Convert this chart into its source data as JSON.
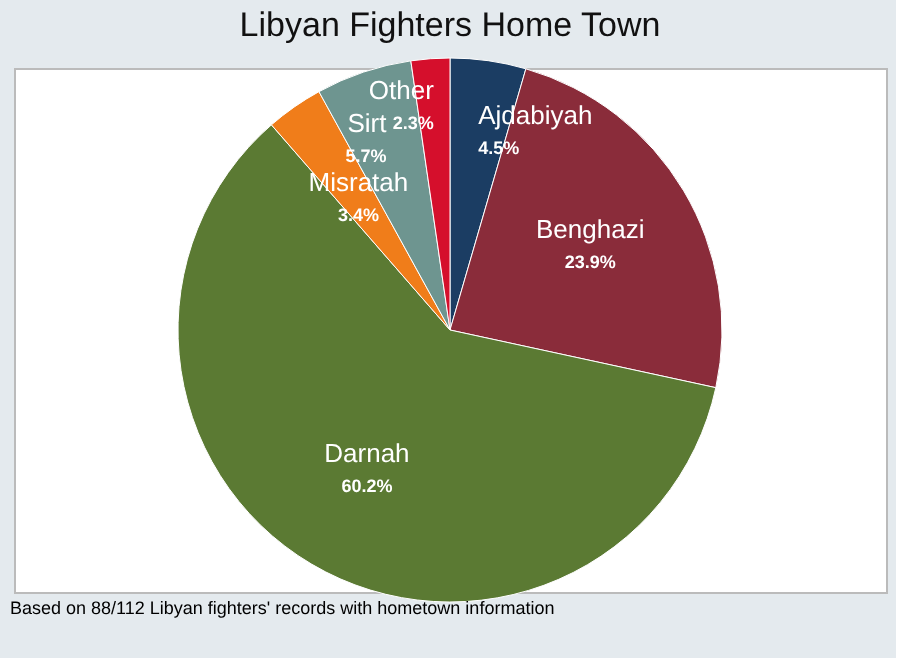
{
  "chart_data": {
    "type": "pie",
    "title": "Libyan Fighters Home Town",
    "categories": [
      "Ajdabiyah",
      "Benghazi",
      "Darnah",
      "Misratah",
      "Sirt",
      "Other"
    ],
    "values": [
      4.5,
      23.9,
      60.2,
      3.4,
      5.7,
      2.3
    ],
    "value_labels": [
      "4.5%",
      "23.9%",
      "60.2%",
      "3.4%",
      "5.7%",
      "2.3%"
    ],
    "colors": [
      "#1b3d63",
      "#8a2c3a",
      "#5b7a33",
      "#f07d1a",
      "#6e9590",
      "#d50f2c"
    ],
    "legend": false,
    "annotations": [
      "Based on 88/112 Libyan fighters' records with hometown information"
    ]
  }
}
